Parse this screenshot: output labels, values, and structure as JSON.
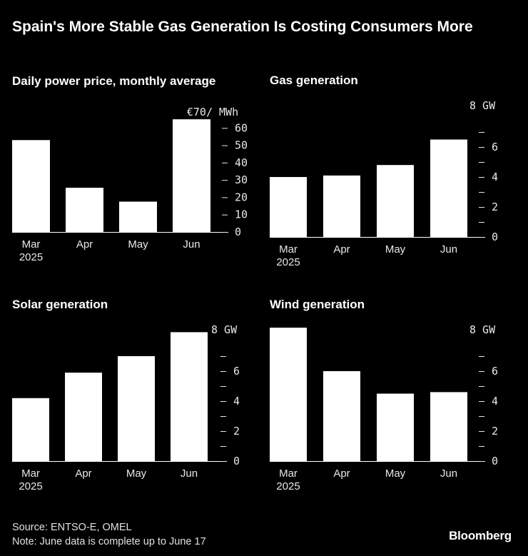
{
  "title": "Spain's More Stable Gas Generation Is Costing Consumers More",
  "source": "Source: ENTSO-E, OMEL",
  "note": "Note: June data is complete up to June 17",
  "logo": "Bloomberg",
  "chart_data": [
    {
      "id": "price",
      "type": "bar",
      "title": "Daily power price, monthly average",
      "categories": [
        "Mar",
        "Apr",
        "May",
        "Jun"
      ],
      "sublabel": "2025",
      "values": [
        53,
        25.5,
        17.5,
        65
      ],
      "unit_label": "€70/ MWh",
      "ylim": [
        0,
        70
      ],
      "tick_values": [
        0,
        10,
        20,
        30,
        40,
        50,
        60,
        70
      ],
      "tick_labels": [
        "0",
        "10",
        "20",
        "30",
        "40",
        "50",
        "60",
        ""
      ]
    },
    {
      "id": "gas",
      "type": "bar",
      "title": "Gas generation",
      "categories": [
        "Mar",
        "Apr",
        "May",
        "Jun"
      ],
      "sublabel": "2025",
      "values": [
        4.0,
        4.1,
        4.8,
        6.5
      ],
      "unit_label": "8 GW",
      "ylim": [
        0,
        9
      ],
      "tick_values": [
        0,
        1,
        2,
        3,
        4,
        5,
        6,
        7,
        8
      ],
      "tick_labels": [
        "0",
        "",
        "2",
        "",
        "4",
        "",
        "6",
        "",
        ""
      ]
    },
    {
      "id": "solar",
      "type": "bar",
      "title": "Solar generation",
      "categories": [
        "Mar",
        "Apr",
        "May",
        "Jun"
      ],
      "sublabel": "2025",
      "values": [
        4.2,
        5.9,
        7.0,
        8.6
      ],
      "unit_label": "8 GW",
      "ylim": [
        0,
        9
      ],
      "tick_values": [
        0,
        1,
        2,
        3,
        4,
        5,
        6,
        7,
        8
      ],
      "tick_labels": [
        "0",
        "",
        "2",
        "",
        "4",
        "",
        "6",
        "",
        ""
      ]
    },
    {
      "id": "wind",
      "type": "bar",
      "title": "Wind generation",
      "categories": [
        "Mar",
        "Apr",
        "May",
        "Jun"
      ],
      "sublabel": "2025",
      "values": [
        8.9,
        6.0,
        4.5,
        4.6
      ],
      "unit_label": "8 GW",
      "ylim": [
        0,
        9
      ],
      "tick_values": [
        0,
        1,
        2,
        3,
        4,
        5,
        6,
        7,
        8
      ],
      "tick_labels": [
        "0",
        "",
        "2",
        "",
        "4",
        "",
        "6",
        "",
        ""
      ]
    }
  ]
}
